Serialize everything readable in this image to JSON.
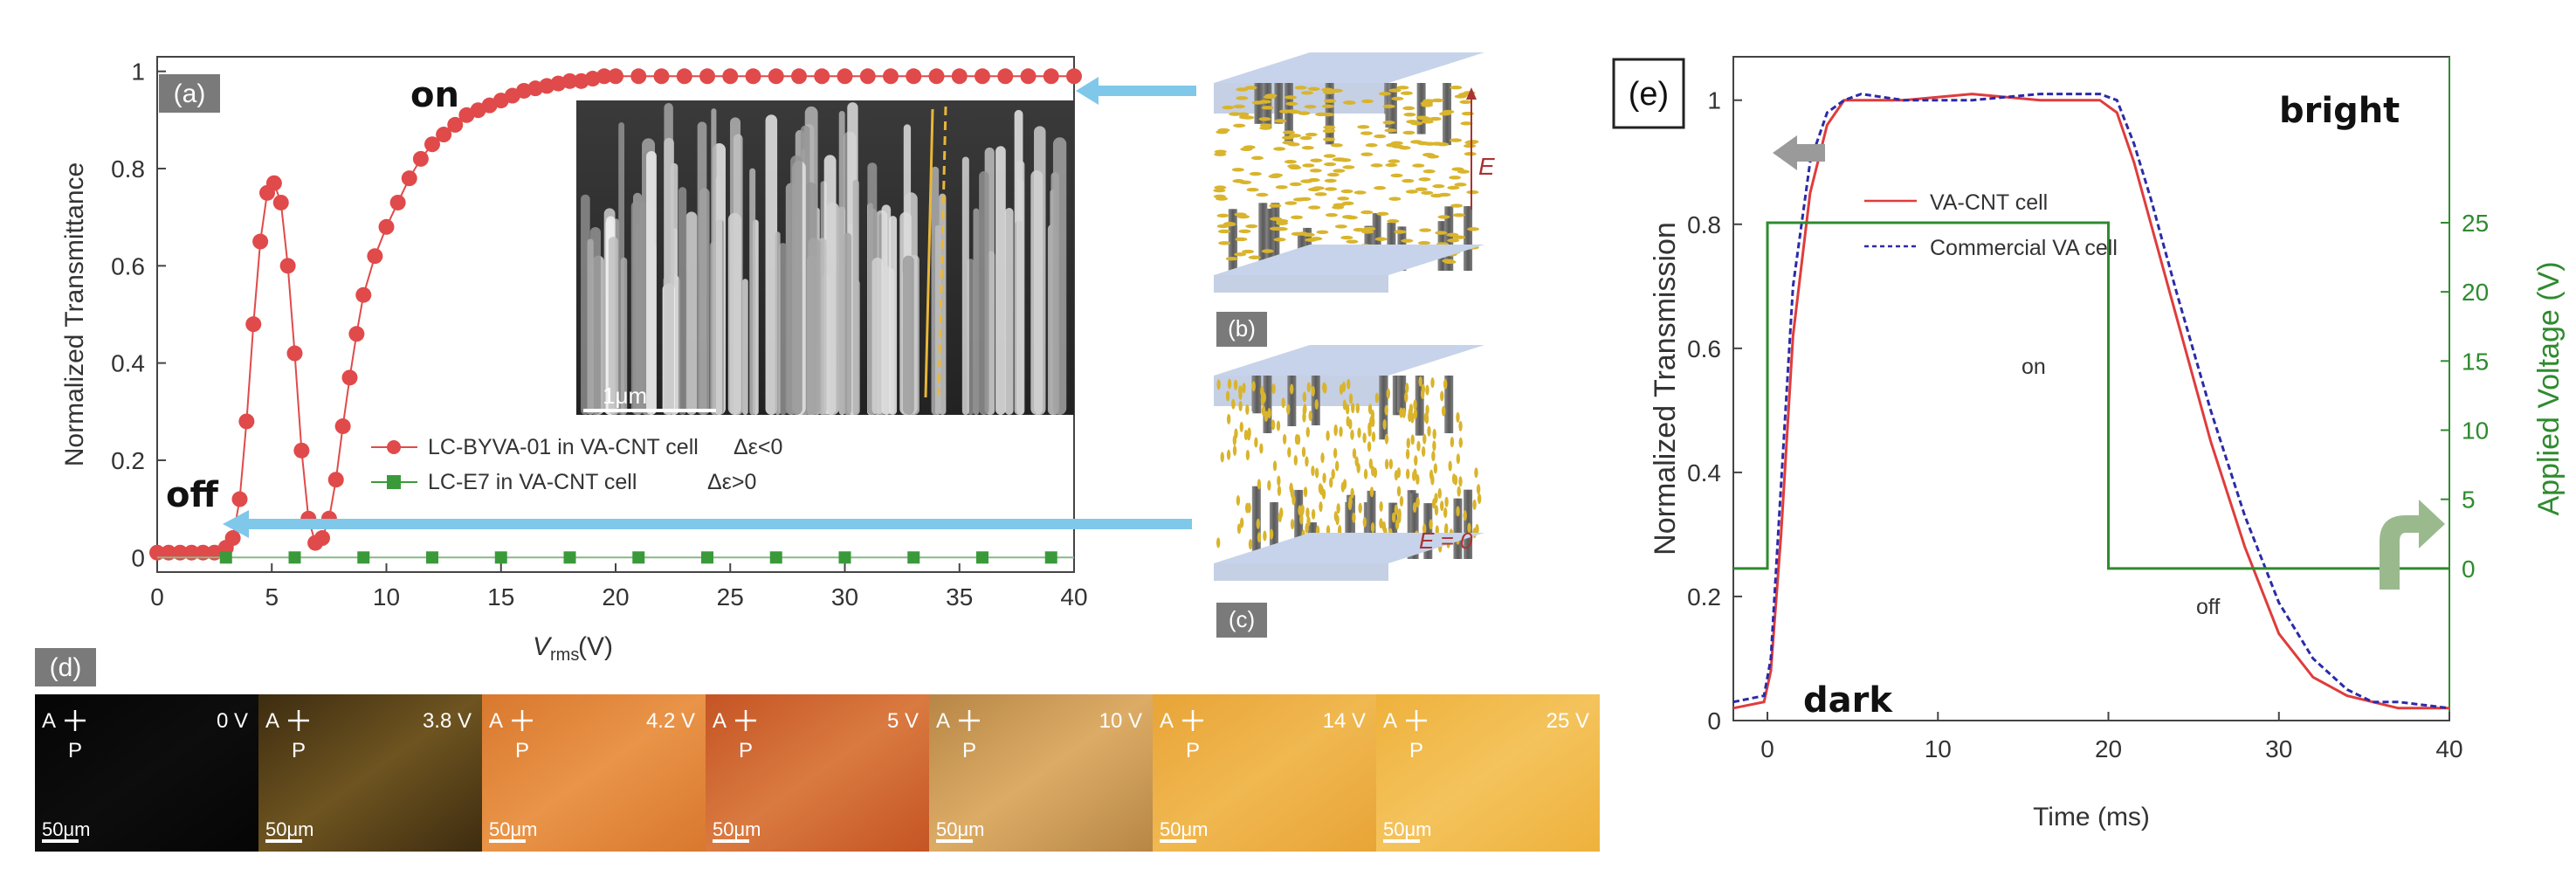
{
  "panel_a": {
    "label": "(a)",
    "ylabel": "Normalized Transmittance",
    "xlabel_main": "V",
    "xlabel_sub": "rms",
    "xlabel_unit": " (V)",
    "on_label": "on",
    "off_label": "off",
    "legend": [
      {
        "text": "LC-BYVA-01 in VA-CNT cell",
        "math": "Δε<0",
        "color": "#e04a4a"
      },
      {
        "text": "LC-E7 in VA-CNT cell",
        "math": "Δε>0",
        "color": "#3a9a3a"
      }
    ],
    "inset_scale": "1μm"
  },
  "panel_b": {
    "label": "(b)",
    "field": "E"
  },
  "panel_c": {
    "label": "(c)",
    "field": "E = 0"
  },
  "panel_d": {
    "label": "(d)",
    "analyzer": "A",
    "polarizer": "P",
    "scale": "50μm",
    "images": [
      {
        "voltage": "0 V",
        "color": "#050505",
        "color2": "#0d0d0d"
      },
      {
        "voltage": "3.8 V",
        "color": "#3d2c10",
        "color2": "#6e5420"
      },
      {
        "voltage": "4.2 V",
        "color": "#d8782e",
        "color2": "#e99448"
      },
      {
        "voltage": "5 V",
        "color": "#c55424",
        "color2": "#d97a40"
      },
      {
        "voltage": "10 V",
        "color": "#b78646",
        "color2": "#dcac66"
      },
      {
        "voltage": "14 V",
        "color": "#e8a437",
        "color2": "#f0b850"
      },
      {
        "voltage": "25 V",
        "color": "#eeb13c",
        "color2": "#f4c35c"
      }
    ]
  },
  "panel_e": {
    "label": "(e)",
    "ylabel_left": "Normalized Transmission",
    "ylabel_right": "Applied Voltage (V)",
    "xlabel": "Time (ms)",
    "bright_label": "bright",
    "dark_label": "dark",
    "on_label": "on",
    "off_label": "off",
    "legend": [
      {
        "text": "VA-CNT cell",
        "color": "#e03c3c"
      },
      {
        "text": "Commercial VA cell",
        "color": "#2b2ba8"
      }
    ]
  },
  "chart_data": [
    {
      "type": "scatter",
      "title": "",
      "xlabel": "Vrms (V)",
      "ylabel": "Normalized Transmittance",
      "xlim": [
        0,
        40
      ],
      "ylim": [
        -0.03,
        1.03
      ],
      "xticks": [
        0,
        5,
        10,
        15,
        20,
        25,
        30,
        35,
        40
      ],
      "yticks": [
        0,
        0.2,
        0.4,
        0.6,
        0.8,
        1
      ],
      "ytick_labels": [
        "0",
        "0.2",
        "0.4",
        "0.6",
        "0.8",
        "1"
      ],
      "series": [
        {
          "name": "LC-BYVA-01 in VA-CNT cell, Δε<0",
          "color": "#e04a4a",
          "x": [
            0,
            0.5,
            1,
            1.5,
            2,
            2.5,
            3,
            3.3,
            3.6,
            3.9,
            4.2,
            4.5,
            4.8,
            5.1,
            5.4,
            5.7,
            6.0,
            6.3,
            6.6,
            6.9,
            7.2,
            7.5,
            7.8,
            8.1,
            8.4,
            8.7,
            9,
            9.5,
            10,
            10.5,
            11,
            11.5,
            12,
            12.5,
            13,
            13.5,
            14,
            14.5,
            15,
            15.5,
            16,
            16.5,
            17,
            17.5,
            18,
            18.5,
            19,
            19.5,
            20,
            21,
            22,
            23,
            24,
            25,
            26,
            27,
            28,
            29,
            30,
            31,
            32,
            33,
            34,
            35,
            36,
            37,
            38,
            39,
            40
          ],
          "y": [
            0.01,
            0.01,
            0.01,
            0.01,
            0.01,
            0.01,
            0.02,
            0.04,
            0.12,
            0.28,
            0.48,
            0.65,
            0.75,
            0.77,
            0.73,
            0.6,
            0.42,
            0.22,
            0.08,
            0.03,
            0.04,
            0.08,
            0.16,
            0.27,
            0.37,
            0.46,
            0.54,
            0.62,
            0.68,
            0.73,
            0.78,
            0.82,
            0.85,
            0.87,
            0.89,
            0.91,
            0.92,
            0.93,
            0.94,
            0.95,
            0.96,
            0.965,
            0.97,
            0.975,
            0.98,
            0.98,
            0.985,
            0.99,
            0.99,
            0.99,
            0.99,
            0.99,
            0.99,
            0.99,
            0.99,
            0.99,
            0.99,
            0.99,
            0.99,
            0.99,
            0.99,
            0.99,
            0.99,
            0.99,
            0.99,
            0.99,
            0.99,
            0.99,
            0.99
          ]
        },
        {
          "name": "LC-E7 in VA-CNT cell, Δε>0",
          "color": "#3a9a3a",
          "x": [
            3,
            6,
            9,
            12,
            15,
            18,
            21,
            24,
            27,
            30,
            33,
            36,
            39
          ],
          "y": [
            0,
            0,
            0,
            0,
            0,
            0,
            0,
            0,
            0,
            0,
            0,
            0,
            0
          ]
        }
      ]
    },
    {
      "type": "line",
      "title": "",
      "xlabel": "Time (ms)",
      "ylabel": "Normalized Transmission",
      "ylabel_right": "Applied Voltage (V)",
      "xlim": [
        -2,
        40
      ],
      "ylim": [
        0,
        1.07
      ],
      "ylim_right": [
        -11,
        37
      ],
      "xticks": [
        0,
        10,
        20,
        30,
        40
      ],
      "yticks": [
        0,
        0.2,
        0.4,
        0.6,
        0.8,
        1
      ],
      "ytick_labels": [
        "0",
        "0.2",
        "0.4",
        "0.6",
        "0.8",
        "1"
      ],
      "yticks_right": [
        0,
        5,
        10,
        15,
        20,
        25
      ],
      "series": [
        {
          "name": "VA-CNT cell",
          "color": "#e03c3c",
          "axis": "left",
          "x": [
            -2,
            -0.2,
            0.2,
            0.8,
            1.5,
            2.5,
            3.5,
            4.5,
            5.5,
            8,
            12,
            16,
            19.5,
            20.5,
            21.5,
            22.5,
            24,
            26,
            28,
            30,
            32,
            34,
            35.5,
            37,
            40
          ],
          "y": [
            0.02,
            0.03,
            0.08,
            0.3,
            0.62,
            0.85,
            0.96,
            1.0,
            1.0,
            1.0,
            1.01,
            1.0,
            1.0,
            0.98,
            0.9,
            0.8,
            0.65,
            0.45,
            0.28,
            0.14,
            0.07,
            0.04,
            0.03,
            0.02,
            0.02
          ]
        },
        {
          "name": "Commercial VA cell",
          "color": "#2b2ba8",
          "axis": "left",
          "x": [
            -2,
            -0.2,
            0.2,
            0.8,
            1.5,
            2.5,
            3.5,
            4.5,
            5.5,
            8,
            12,
            16,
            19.5,
            20.5,
            21.5,
            22.5,
            24,
            26,
            28,
            30,
            32,
            34,
            35.5,
            37,
            40
          ],
          "y": [
            0.03,
            0.04,
            0.1,
            0.38,
            0.7,
            0.9,
            0.98,
            1.0,
            1.01,
            1.0,
            1.0,
            1.01,
            1.01,
            1.0,
            0.93,
            0.84,
            0.69,
            0.5,
            0.33,
            0.19,
            0.1,
            0.05,
            0.03,
            0.03,
            0.02
          ]
        },
        {
          "name": "Applied Voltage",
          "color": "#2e8b2e",
          "axis": "right",
          "x": [
            -2,
            0,
            0,
            20,
            20,
            40
          ],
          "y": [
            0,
            0,
            25,
            25,
            0,
            0
          ]
        }
      ]
    }
  ]
}
